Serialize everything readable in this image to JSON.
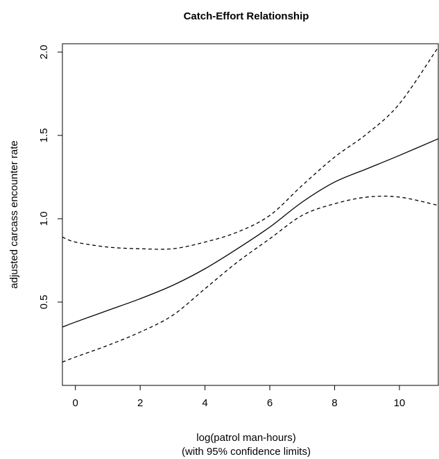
{
  "chart_data": {
    "type": "line",
    "title": "Catch-Effort Relationship",
    "xlabel": "log(patrol man-hours)",
    "xlabel_sub": "(with 95% confidence limits)",
    "ylabel": "adjusted carcass encounter rate",
    "xlim": [
      -0.4,
      11.2
    ],
    "ylim": [
      0.0,
      2.05
    ],
    "x_ticks": [
      0,
      2,
      4,
      6,
      8,
      10
    ],
    "y_ticks": [
      0.5,
      1.0,
      1.5,
      2.0
    ],
    "x_tick_labels": [
      "0",
      "2",
      "4",
      "6",
      "8",
      "10"
    ],
    "y_tick_labels": [
      "0.5",
      "1.0",
      "1.5",
      "2.0"
    ],
    "grid": false,
    "series": [
      {
        "role": "fit",
        "style": "solid",
        "x": [
          -0.4,
          0,
          1,
          2,
          3,
          4,
          5,
          6,
          7,
          8,
          9,
          10,
          11.2
        ],
        "y": [
          0.35,
          0.38,
          0.45,
          0.52,
          0.6,
          0.7,
          0.82,
          0.95,
          1.1,
          1.22,
          1.3,
          1.38,
          1.48
        ]
      },
      {
        "role": "upper",
        "style": "dashed",
        "x": [
          -0.4,
          0,
          1,
          2,
          3,
          4,
          5,
          6,
          7,
          8,
          9,
          10,
          11.2
        ],
        "y": [
          0.89,
          0.86,
          0.83,
          0.82,
          0.82,
          0.86,
          0.92,
          1.02,
          1.2,
          1.37,
          1.51,
          1.69,
          2.03
        ]
      },
      {
        "role": "lower",
        "style": "dashed",
        "x": [
          -0.4,
          0,
          1,
          2,
          3,
          4,
          5,
          6,
          7,
          8,
          9,
          10,
          11.2
        ],
        "y": [
          0.14,
          0.17,
          0.24,
          0.32,
          0.42,
          0.58,
          0.74,
          0.88,
          1.02,
          1.09,
          1.13,
          1.13,
          1.08
        ]
      }
    ]
  }
}
